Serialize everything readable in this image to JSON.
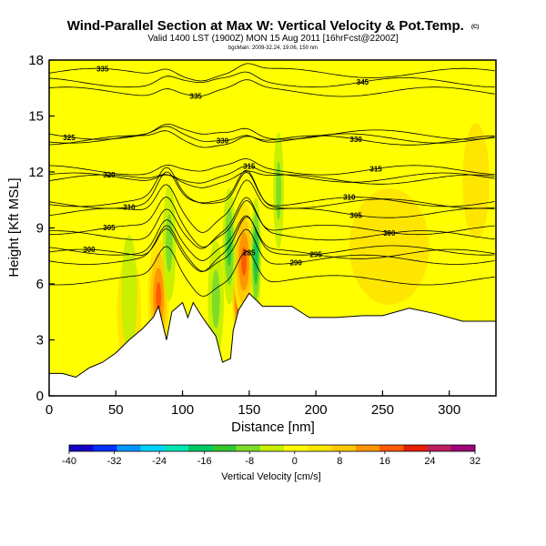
{
  "chart_data": {
    "type": "heatmap",
    "title": "Wind-Parallel Section at Max W: Vertical Velocity & Pot.Temp.",
    "title_mark": "(C)",
    "subtitle": "Valid 1400 LST (1900Z) MON 15 Aug 2011 [16hrFcst@2200Z]",
    "subtitle2": "bgcMain: 2009-32.24, 19.06, 150 nm",
    "xlabel": "Distance [nm]",
    "ylabel": "Height [Kft MSL]",
    "xlim": [
      0,
      335
    ],
    "ylim": [
      0,
      18
    ],
    "x_ticks": [
      "0",
      "50",
      "100",
      "150",
      "200",
      "250",
      "300"
    ],
    "y_ticks": [
      "0",
      "3",
      "6",
      "9",
      "12",
      "15",
      "18"
    ],
    "colorbar": {
      "label": "Vertical Velocity [cm/s]",
      "ticks": [
        "-40",
        "-32",
        "-24",
        "-16",
        "-8",
        "0",
        "8",
        "16",
        "24",
        "32"
      ],
      "colors": [
        "#1400c8",
        "#0030ff",
        "#0096ff",
        "#00d2ff",
        "#00e6b4",
        "#00c864",
        "#32c832",
        "#7ddc28",
        "#c8f000",
        "#ffff00",
        "#ffe600",
        "#ffc800",
        "#ff9600",
        "#ff5a00",
        "#e61e00",
        "#be1e5a",
        "#9c0078"
      ]
    },
    "background_value": 0,
    "terrain": [
      [
        0,
        1.2
      ],
      [
        10,
        1.2
      ],
      [
        20,
        1.0
      ],
      [
        30,
        1.5
      ],
      [
        40,
        1.8
      ],
      [
        50,
        2.3
      ],
      [
        60,
        3.0
      ],
      [
        70,
        3.6
      ],
      [
        78,
        4.2
      ],
      [
        82,
        4.8
      ],
      [
        88,
        3.0
      ],
      [
        92,
        4.5
      ],
      [
        100,
        5.0
      ],
      [
        104,
        4.2
      ],
      [
        108,
        5.0
      ],
      [
        115,
        4.2
      ],
      [
        125,
        3.2
      ],
      [
        130,
        1.8
      ],
      [
        136,
        2.0
      ],
      [
        138,
        3.5
      ],
      [
        142,
        4.6
      ],
      [
        150,
        5.5
      ],
      [
        160,
        4.8
      ],
      [
        182,
        4.8
      ],
      [
        195,
        4.2
      ],
      [
        215,
        4.2
      ],
      [
        235,
        4.3
      ],
      [
        250,
        4.3
      ],
      [
        270,
        4.7
      ],
      [
        290,
        4.4
      ],
      [
        310,
        4.0
      ],
      [
        335,
        4.0
      ]
    ],
    "updrafts": [
      {
        "x": 82,
        "y": 5.3,
        "w": 8,
        "max": 14
      },
      {
        "x": 143,
        "y": 5.8,
        "w": 6,
        "max": 26
      },
      {
        "x": 146,
        "y": 7.2,
        "w": 8,
        "max": 14
      },
      {
        "x": 60,
        "y": 4.5,
        "w": 9,
        "max": 8
      },
      {
        "x": 320,
        "y": 11.5,
        "w": 10,
        "max": 5
      },
      {
        "x": 255,
        "y": 8.0,
        "w": 30,
        "max": 3
      }
    ],
    "downdrafts": [
      {
        "x": 90,
        "y": 8.2,
        "w": 5,
        "max": -9
      },
      {
        "x": 135,
        "y": 8.0,
        "w": 5,
        "max": -10
      },
      {
        "x": 155,
        "y": 7.5,
        "w": 4,
        "max": -16
      },
      {
        "x": 172,
        "y": 11.0,
        "w": 4,
        "max": -8
      },
      {
        "x": 60,
        "y": 5.5,
        "w": 6,
        "max": -5
      },
      {
        "x": 125,
        "y": 5.2,
        "w": 6,
        "max": -6
      }
    ],
    "isentropes": [
      {
        "label": "335",
        "y": 17.3,
        "lx": 40
      },
      {
        "label": "335",
        "y": 16.3,
        "lx": 110
      },
      {
        "label": "345",
        "y": 16.8,
        "lx": 235
      },
      {
        "label": "325",
        "y": 14.0,
        "lx": 15
      },
      {
        "label": "330",
        "y": 13.8,
        "lx": 130
      },
      {
        "label": "330",
        "y": 13.7,
        "lx": 230
      },
      {
        "label": "320",
        "y": 11.6,
        "lx": 45
      },
      {
        "label": "315",
        "y": 11.7,
        "lx": 150
      },
      {
        "label": "315",
        "y": 12.1,
        "lx": 245
      },
      {
        "label": "310",
        "y": 10.3,
        "lx": 60
      },
      {
        "label": "310",
        "y": 10.4,
        "lx": 225
      },
      {
        "label": "305",
        "y": 8.9,
        "lx": 45
      },
      {
        "label": "305",
        "y": 9.8,
        "lx": 230
      },
      {
        "label": "300",
        "y": 7.6,
        "lx": 30
      },
      {
        "label": "300",
        "y": 8.6,
        "lx": 255
      },
      {
        "label": "295",
        "y": 7.8,
        "lx": 200
      },
      {
        "label": "290",
        "y": 7.3,
        "lx": 185
      },
      {
        "label": "285",
        "y": 6.2,
        "lx": 150
      }
    ]
  }
}
